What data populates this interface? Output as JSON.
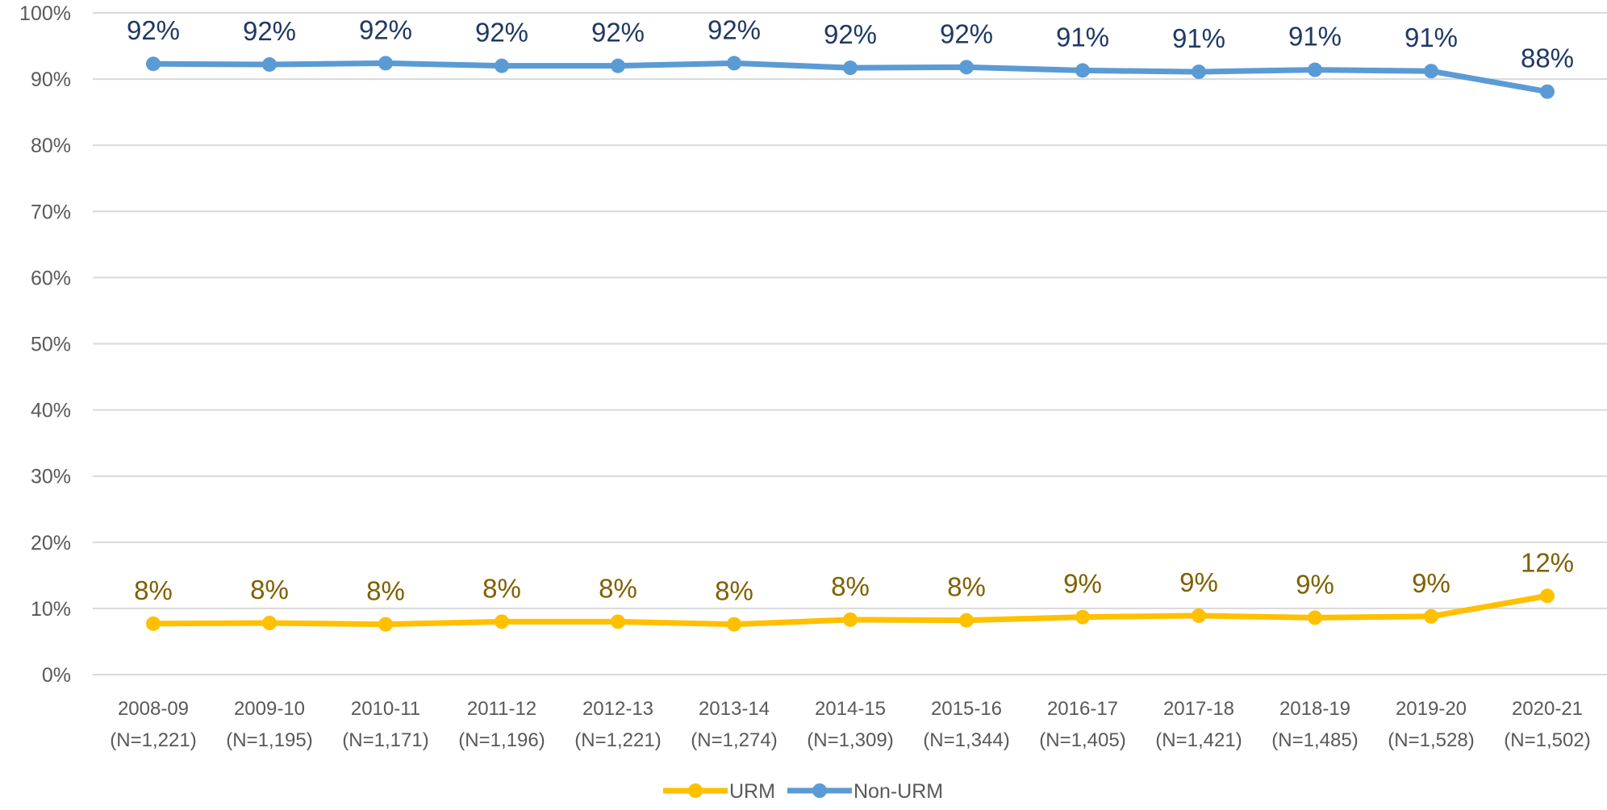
{
  "chart_data": {
    "type": "line",
    "categories": [
      "2008-09",
      "2009-10",
      "2010-11",
      "2011-12",
      "2012-13",
      "2013-14",
      "2014-15",
      "2015-16",
      "2016-17",
      "2017-18",
      "2018-19",
      "2019-20",
      "2020-21"
    ],
    "category_sublabels": [
      "(N=1,221)",
      "(N=1,195)",
      "(N=1,171)",
      "(N=1,196)",
      "(N=1,221)",
      "(N=1,274)",
      "(N=1,309)",
      "(N=1,344)",
      "(N=1,405)",
      "(N=1,421)",
      "(N=1,485)",
      "(N=1,528)",
      "(N=1,502)"
    ],
    "ylim": [
      0,
      100
    ],
    "yticks": [
      0,
      10,
      20,
      30,
      40,
      50,
      60,
      70,
      80,
      90,
      100
    ],
    "ytick_labels": [
      "0%",
      "10%",
      "20%",
      "30%",
      "40%",
      "50%",
      "60%",
      "70%",
      "80%",
      "90%",
      "100%"
    ],
    "grid": true,
    "legend_position": "bottom-center",
    "series": [
      {
        "name": "URM",
        "color": "#FFC000",
        "label_color": "#7F6000",
        "values": [
          7.7,
          7.8,
          7.6,
          8.0,
          8.0,
          7.6,
          8.3,
          8.2,
          8.7,
          8.9,
          8.6,
          8.8,
          11.9
        ],
        "data_labels": [
          "8%",
          "8%",
          "8%",
          "8%",
          "8%",
          "8%",
          "8%",
          "8%",
          "9%",
          "9%",
          "9%",
          "9%",
          "12%"
        ]
      },
      {
        "name": "Non-URM",
        "color": "#5B9BD5",
        "label_color": "#1F3864",
        "values": [
          92.3,
          92.2,
          92.4,
          92.0,
          92.0,
          92.4,
          91.7,
          91.8,
          91.3,
          91.1,
          91.4,
          91.2,
          88.1
        ],
        "data_labels": [
          "92%",
          "92%",
          "92%",
          "92%",
          "92%",
          "92%",
          "92%",
          "92%",
          "91%",
          "91%",
          "91%",
          "91%",
          "88%"
        ]
      }
    ]
  }
}
